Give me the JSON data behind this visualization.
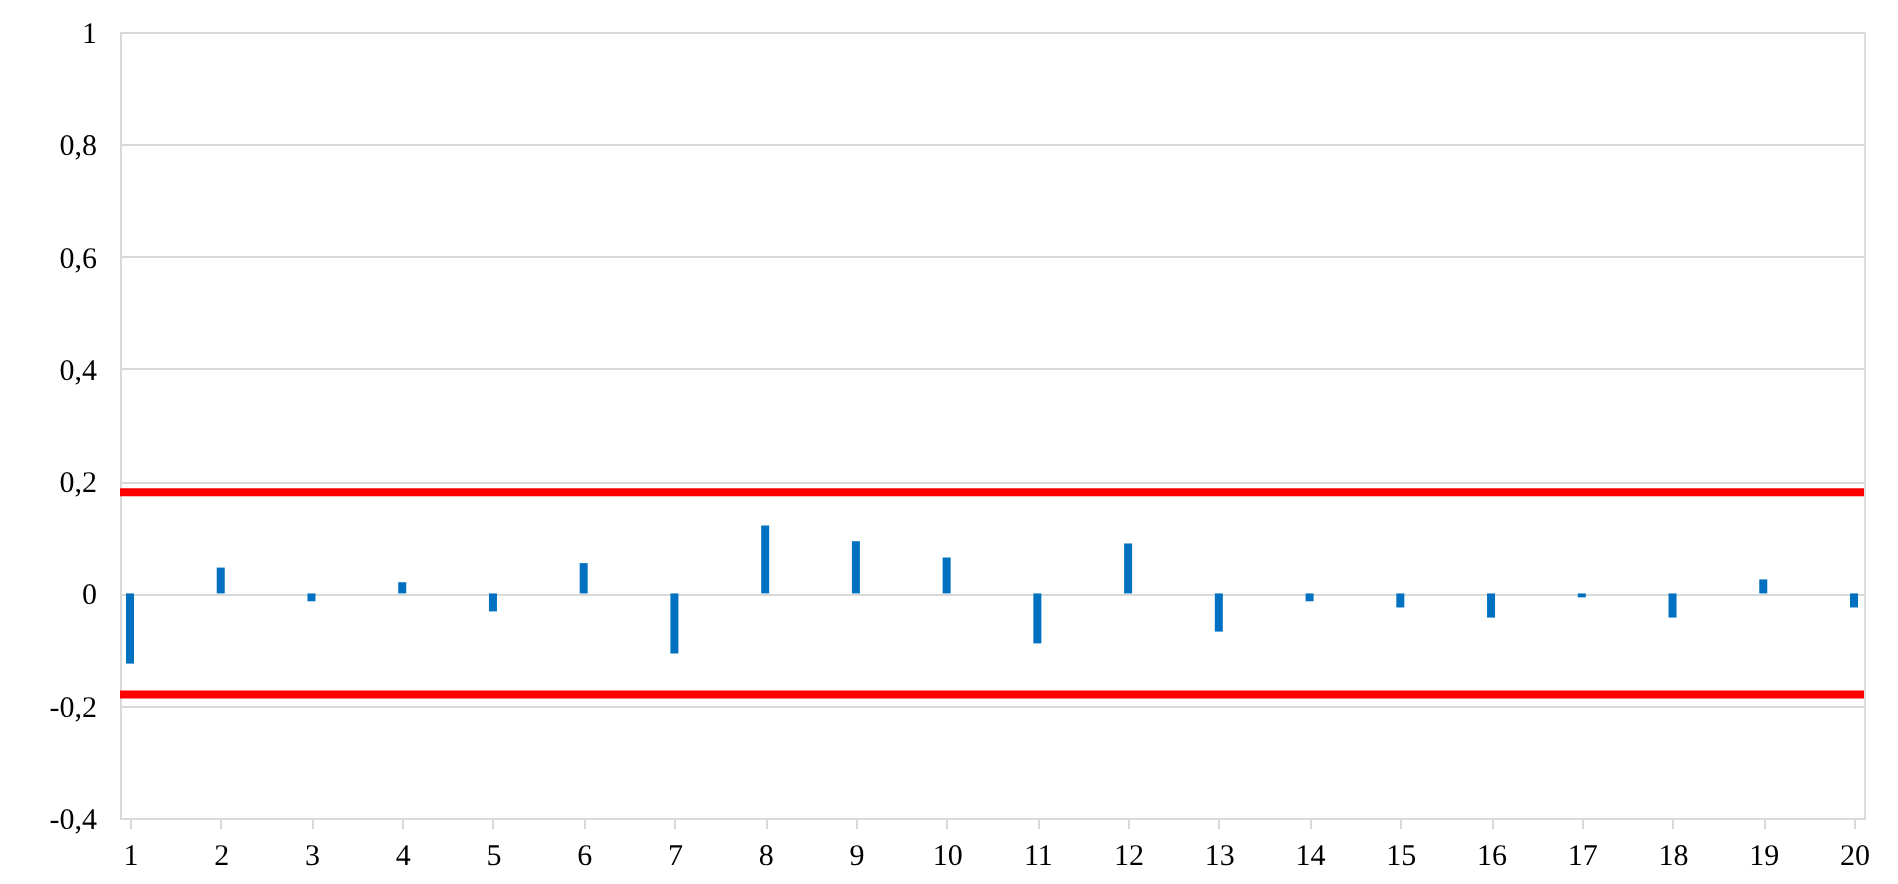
{
  "chart_data": {
    "type": "bar",
    "x": [
      1,
      2,
      3,
      4,
      5,
      6,
      7,
      8,
      9,
      10,
      11,
      12,
      13,
      14,
      15,
      16,
      17,
      18,
      19,
      20
    ],
    "values": [
      -0.125,
      0.046,
      -0.014,
      0.02,
      -0.032,
      0.054,
      -0.107,
      0.121,
      0.093,
      0.064,
      -0.089,
      0.089,
      -0.068,
      -0.014,
      -0.025,
      -0.043,
      -0.007,
      -0.043,
      0.025,
      -0.025
    ],
    "color": "#0070c0",
    "xlim": [
      1,
      20
    ],
    "xticks": [
      1,
      2,
      3,
      4,
      5,
      6,
      7,
      8,
      9,
      10,
      11,
      12,
      13,
      14,
      15,
      16,
      17,
      18,
      19,
      20
    ],
    "ylim": [
      -0.4,
      1
    ],
    "yticks": [
      {
        "value": -0.4,
        "label": "-0,4"
      },
      {
        "value": -0.2,
        "label": "-0,2"
      },
      0,
      {
        "value": 0.2,
        "label": "0,2"
      },
      {
        "value": 0.4,
        "label": "0,4"
      },
      {
        "value": 0.6,
        "label": "0,6"
      },
      {
        "value": 0.8,
        "label": "0,8"
      },
      1
    ],
    "grid": "y",
    "ref_lines": [
      {
        "axis": "y",
        "value": 0.18,
        "color": "#ff0000"
      },
      {
        "axis": "y",
        "value": -0.18,
        "color": "#ff0000"
      }
    ]
  }
}
